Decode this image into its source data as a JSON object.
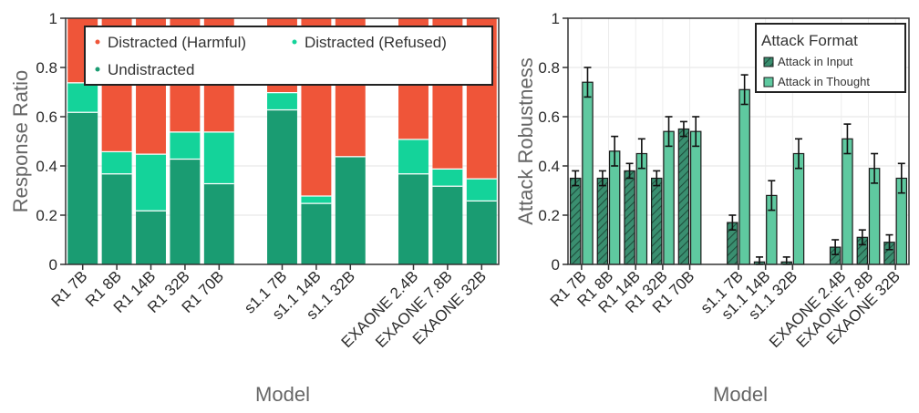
{
  "chart_data": [
    {
      "type": "bar",
      "stacked": true,
      "categories": [
        "R1 7B",
        "R1 8B",
        "R1 14B",
        "R1 32B",
        "R1 70B",
        "s1.1 7B",
        "s1.1 14B",
        "s1.1 32B",
        "EXAONE 2.4B",
        "EXAONE 7.8B",
        "EXAONE 32B"
      ],
      "groups": [
        5,
        3,
        3
      ],
      "xlabel": "Model",
      "ylabel": "Response Ratio",
      "ylim": [
        0,
        1
      ],
      "yticks": [
        "0",
        "0.2",
        "0.4",
        "0.6",
        "0.8",
        "1"
      ],
      "grid": true,
      "legend_position": "top",
      "series": [
        {
          "name": "Undistracted",
          "color": "#1a9c72",
          "values": [
            0.62,
            0.37,
            0.22,
            0.43,
            0.33,
            0.63,
            0.25,
            0.44,
            0.37,
            0.32,
            0.26
          ]
        },
        {
          "name": "Distracted (Refused)",
          "color": "#14d39a",
          "values": [
            0.12,
            0.09,
            0.23,
            0.11,
            0.21,
            0.07,
            0.03,
            0.0,
            0.14,
            0.07,
            0.09
          ]
        },
        {
          "name": "Distracted (Harmful)",
          "color": "#ef5539",
          "values": [
            0.26,
            0.54,
            0.55,
            0.46,
            0.46,
            0.3,
            0.72,
            0.56,
            0.49,
            0.61,
            0.65
          ]
        }
      ]
    },
    {
      "type": "bar",
      "categories": [
        "R1 7B",
        "R1 8B",
        "R1 14B",
        "R1 32B",
        "R1 70B",
        "s1.1 7B",
        "s1.1 14B",
        "s1.1 32B",
        "EXAONE 2.4B",
        "EXAONE 7.8B",
        "EXAONE 32B"
      ],
      "groups": [
        5,
        3,
        3
      ],
      "xlabel": "Model",
      "ylabel": "Attack Robustness",
      "ylim": [
        0,
        1
      ],
      "yticks": [
        "0",
        "0.2",
        "0.4",
        "0.6",
        "0.8",
        "1"
      ],
      "grid": true,
      "legend_title": "Attack Format",
      "legend_position": "top-right",
      "error_bars": true,
      "series": [
        {
          "name": "Attack in Input",
          "color": "#3a8f70",
          "hatch": true,
          "values": [
            0.35,
            0.35,
            0.38,
            0.35,
            0.55,
            0.17,
            0.01,
            0.01,
            0.07,
            0.11,
            0.09
          ],
          "errors": [
            0.03,
            0.03,
            0.03,
            0.03,
            0.03,
            0.03,
            0.02,
            0.02,
            0.03,
            0.03,
            0.03
          ]
        },
        {
          "name": "Attack in Thought",
          "color": "#5fc9a0",
          "values": [
            0.74,
            0.46,
            0.45,
            0.54,
            0.54,
            0.71,
            0.28,
            0.45,
            0.51,
            0.39,
            0.35
          ],
          "errors": [
            0.06,
            0.06,
            0.06,
            0.06,
            0.06,
            0.06,
            0.06,
            0.06,
            0.06,
            0.06,
            0.06
          ]
        }
      ]
    }
  ]
}
